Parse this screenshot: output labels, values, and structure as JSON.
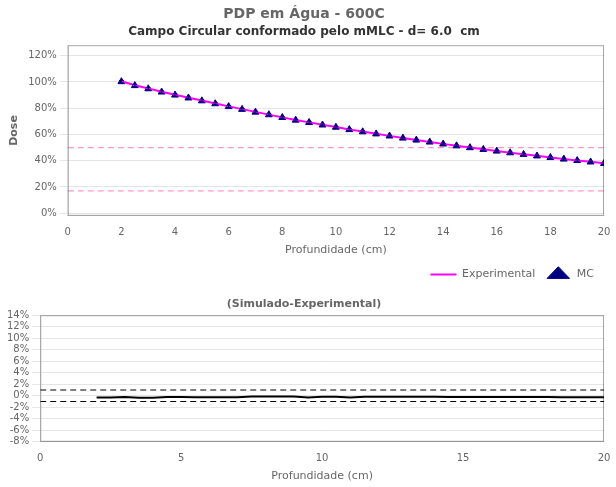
{
  "chart_data": [
    {
      "type": "line",
      "title": "PDP em Água - 600C",
      "subtitle": "Campo Circular conformado pelo mMLC - d= 6.0  cm",
      "x_label": "Profundidade (cm)",
      "y_label": "Dose",
      "x": [
        2.0,
        2.5,
        3.0,
        3.5,
        4.0,
        4.5,
        5.0,
        5.5,
        6.0,
        6.5,
        7.0,
        7.5,
        8.0,
        8.5,
        9.0,
        9.5,
        10.0,
        10.5,
        11.0,
        11.5,
        12.0,
        12.5,
        13.0,
        13.5,
        14.0,
        14.5,
        15.0,
        15.5,
        16.0,
        16.5,
        17.0,
        17.5,
        18.0,
        18.5,
        19.0,
        19.5,
        20.0
      ],
      "series": [
        {
          "name": "Experimental",
          "type": "line",
          "color": "#ff00ff",
          "line_style": "solid",
          "values": [
            1.005,
            0.975,
            0.95,
            0.926,
            0.903,
            0.88,
            0.858,
            0.836,
            0.814,
            0.793,
            0.772,
            0.751,
            0.73,
            0.71,
            0.692,
            0.674,
            0.656,
            0.638,
            0.622,
            0.605,
            0.589,
            0.573,
            0.558,
            0.543,
            0.528,
            0.514,
            0.5,
            0.487,
            0.474,
            0.461,
            0.449,
            0.437,
            0.425,
            0.413,
            0.402,
            0.391,
            0.38
          ]
        },
        {
          "name": "MC",
          "type": "scatter",
          "color": "#000080",
          "marker": "triangle",
          "values": [
            1.002,
            0.972,
            0.948,
            0.923,
            0.9,
            0.878,
            0.856,
            0.834,
            0.812,
            0.791,
            0.77,
            0.75,
            0.729,
            0.709,
            0.691,
            0.672,
            0.655,
            0.637,
            0.62,
            0.604,
            0.588,
            0.572,
            0.557,
            0.542,
            0.527,
            0.513,
            0.499,
            0.486,
            0.473,
            0.46,
            0.448,
            0.436,
            0.424,
            0.412,
            0.401,
            0.39,
            0.379
          ],
          "error": [
            0.008,
            0.008,
            0.008,
            0.008,
            0.008,
            0.007,
            0.007,
            0.007,
            0.007,
            0.007,
            0.007,
            0.006,
            0.006,
            0.006,
            0.006,
            0.006,
            0.006,
            0.006,
            0.006,
            0.006,
            0.005,
            0.005,
            0.005,
            0.005,
            0.005,
            0.005,
            0.005,
            0.005,
            0.005,
            0.005,
            0.005,
            0.005,
            0.005,
            0.005,
            0.005,
            0.005,
            0.005
          ]
        }
      ],
      "hlines": [
        {
          "value": 0.5,
          "color": "#ff99cc",
          "line_style": "dashed"
        },
        {
          "value": 0.17,
          "color": "#ff99cc",
          "line_style": "dashed"
        }
      ],
      "xlim": [
        0,
        20
      ],
      "xticks": [
        0,
        2,
        4,
        6,
        8,
        10,
        12,
        14,
        16,
        18,
        20
      ],
      "ylim": [
        -0.02,
        1.28
      ],
      "yticks": [
        {
          "value": 0.0,
          "label": "0%"
        },
        {
          "value": 0.2,
          "label": "20%"
        },
        {
          "value": 0.4,
          "label": "40%"
        },
        {
          "value": 0.6,
          "label": "60%"
        },
        {
          "value": 0.8,
          "label": "80%"
        },
        {
          "value": 1.0,
          "label": "100%"
        },
        {
          "value": 1.2,
          "label": "120%"
        }
      ],
      "grid": "y",
      "legend": "lower right"
    },
    {
      "type": "line",
      "title": "(Simulado-Experimental)",
      "x_label": "Profundidade (cm)",
      "x": [
        2.0,
        2.5,
        3.0,
        3.5,
        4.0,
        4.5,
        5.0,
        5.5,
        6.0,
        6.5,
        7.0,
        7.5,
        8.0,
        8.5,
        9.0,
        9.5,
        10.0,
        10.5,
        11.0,
        11.5,
        12.0,
        12.5,
        13.0,
        13.5,
        14.0,
        14.5,
        15.0,
        15.5,
        16.0,
        16.5,
        17.0,
        17.5,
        18.0,
        18.5,
        19.0,
        19.5,
        20.0
      ],
      "series": [
        {
          "color": "#000000",
          "line_style": "solid",
          "values": [
            -0.2985,
            -0.3077,
            -0.2105,
            -0.324,
            -0.3322,
            -0.2273,
            -0.2331,
            -0.2392,
            -0.2457,
            -0.2522,
            -0.2591,
            -0.1332,
            -0.137,
            -0.1408,
            -0.1445,
            -0.2967,
            -0.1524,
            -0.1567,
            -0.3215,
            -0.1653,
            -0.1698,
            -0.1745,
            -0.1792,
            -0.1842,
            -0.1894,
            -0.1946,
            -0.2,
            -0.2053,
            -0.211,
            -0.2169,
            -0.2227,
            -0.2288,
            -0.2353,
            -0.2421,
            -0.2488,
            -0.2558,
            -0.2632
          ]
        }
      ],
      "hlines": [
        {
          "value": 1.0,
          "color": "#000000",
          "line_style": "dashed"
        },
        {
          "value": -1.0,
          "color": "#000000",
          "line_style": "dashed"
        }
      ],
      "xlim": [
        0,
        20
      ],
      "xticks": [
        0,
        5,
        10,
        15,
        20
      ],
      "ylim": [
        -8,
        14
      ],
      "yticks": [
        {
          "value": -8,
          "label": "-8%"
        },
        {
          "value": -6,
          "label": "-6%"
        },
        {
          "value": -4,
          "label": "-4%"
        },
        {
          "value": -2,
          "label": "-2%"
        },
        {
          "value": 0,
          "label": "0%"
        },
        {
          "value": 2,
          "label": "2%"
        },
        {
          "value": 4,
          "label": "4%"
        },
        {
          "value": 6,
          "label": "6%"
        },
        {
          "value": 8,
          "label": "8%"
        },
        {
          "value": 10,
          "label": "10%"
        },
        {
          "value": 12,
          "label": "12%"
        },
        {
          "value": 14,
          "label": "14%"
        }
      ],
      "grid": "y"
    }
  ]
}
